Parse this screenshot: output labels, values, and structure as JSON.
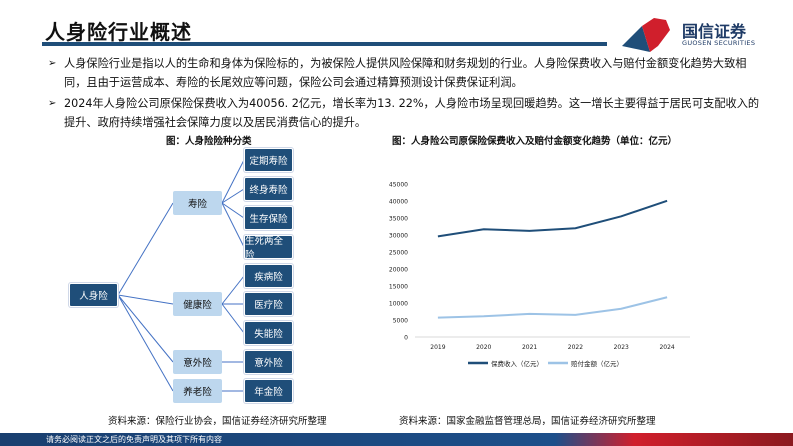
{
  "header": {
    "title": "人身险行业概述",
    "logo_name": "国信证券",
    "logo_en": "GUOSEN SECURITIES"
  },
  "bullets": [
    "人身保险行业是指以人的生命和身体为保险标的，为被保险人提供风险保障和财务规划的行业。人身险保费收入与赔付金额变化趋势大致相同，且由于运营成本、寿险的长尾效应等问题，保险公司会通过精算预测设计保费保证利润。",
    "2024年人身险公司原保险保费收入为40056. 2亿元，增长率为13. 22%，人身险市场呈现回暖趋势。这一增长主要得益于居民可支配收入的提升、政府持续增强社会保障力度以及居民消费信心的提升。"
  ],
  "tree": {
    "caption": "图：人身险险种分类",
    "root": "人身险",
    "groups": [
      {
        "label": "寿险",
        "children": [
          "定期寿险",
          "终身寿险",
          "生存保险",
          "生死两全险"
        ]
      },
      {
        "label": "健康险",
        "children": [
          "疾病险",
          "医疗险",
          "失能险"
        ]
      },
      {
        "label": "意外险",
        "children": [
          "意外险"
        ]
      },
      {
        "label": "养老险",
        "children": [
          "年金险"
        ]
      }
    ],
    "source": "资料来源：保险行业协会，国信证券经济研究所整理"
  },
  "chart_data": {
    "type": "line",
    "title": "图：人身险公司原保险保费收入及赔付金额变化趋势（单位：亿元）",
    "categories": [
      "2019",
      "2020",
      "2021",
      "2022",
      "2023",
      "2024"
    ],
    "ylim": [
      0,
      45000
    ],
    "yticks": [
      0,
      5000,
      10000,
      15000,
      20000,
      25000,
      30000,
      35000,
      40000,
      45000
    ],
    "grid": false,
    "legend": "bottom",
    "series": [
      {
        "name": "保费收入（亿元）",
        "color": "#1f4e79",
        "values": [
          29600,
          31700,
          31200,
          32000,
          35500,
          40056.2
        ]
      },
      {
        "name": "赔付金额（亿元）",
        "color": "#9dc3e6",
        "values": [
          5700,
          6100,
          6800,
          6500,
          8300,
          11700
        ]
      }
    ],
    "source": "资料来源：国家金融监督管理总局，国信证券经济研究所整理"
  },
  "footer": "请务必阅读正文之后的免责声明及其项下所有内容"
}
